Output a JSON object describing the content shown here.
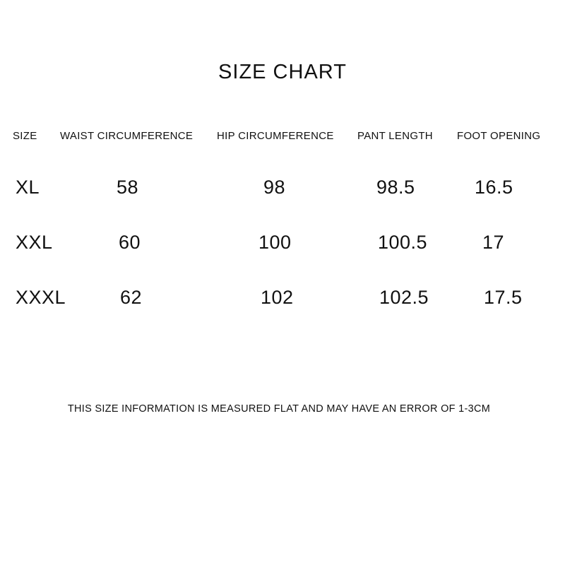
{
  "title": "SIZE CHART",
  "headers": [
    "SIZE",
    "WAIST CIRCUMFERENCE",
    "HIP CIRCUMFERENCE",
    "PANT LENGTH",
    "FOOT OPENING"
  ],
  "rows": [
    [
      "XL",
      "58",
      "98",
      "98.5",
      "16.5"
    ],
    [
      "XXL",
      "60",
      "100",
      "100.5",
      "17"
    ],
    [
      "XXXL",
      "62",
      "102",
      "102.5",
      "17.5"
    ]
  ],
  "note": "THIS SIZE INFORMATION IS MEASURED FLAT AND MAY HAVE AN ERROR OF 1-3CM"
}
